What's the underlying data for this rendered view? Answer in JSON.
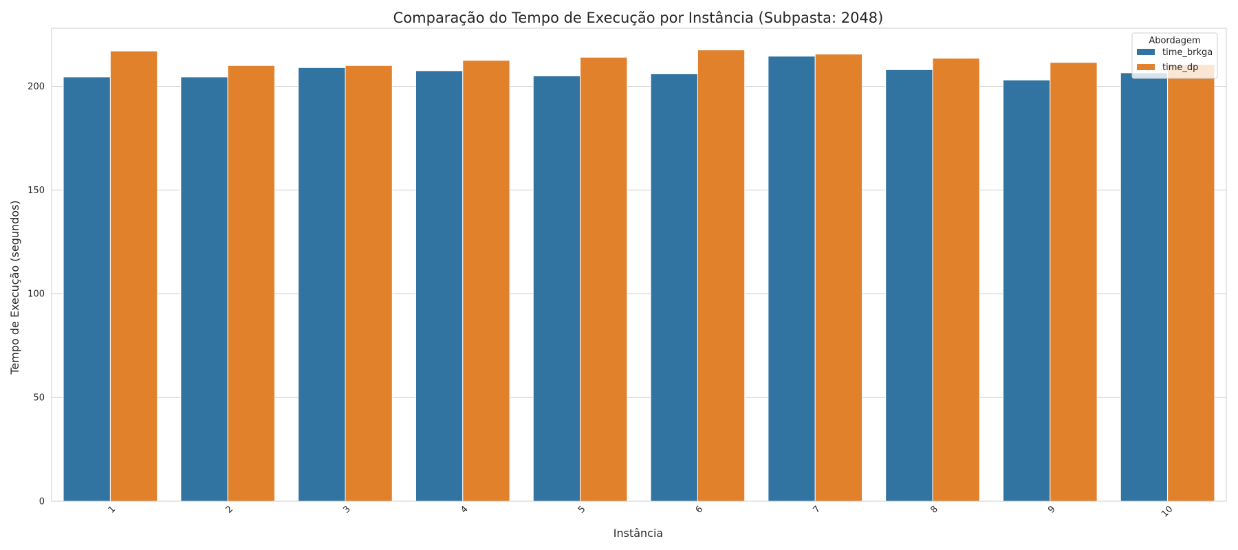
{
  "chart_data": {
    "type": "bar",
    "title": "Comparação do Tempo de Execução por Instância (Subpasta: 2048)",
    "xlabel": "Instância",
    "ylabel": "Tempo de Execução (segundos)",
    "categories": [
      "1",
      "2",
      "3",
      "4",
      "5",
      "6",
      "7",
      "8",
      "9",
      "10"
    ],
    "series": [
      {
        "name": "time_brkga",
        "color": "#3274a1",
        "values": [
          204.5,
          204.5,
          209.0,
          207.5,
          205.0,
          206.0,
          214.5,
          208.0,
          203.0,
          206.5
        ]
      },
      {
        "name": "time_dp",
        "color": "#e1812c",
        "values": [
          217.0,
          210.0,
          210.0,
          212.5,
          214.0,
          217.5,
          215.5,
          213.5,
          211.5,
          210.5
        ]
      }
    ],
    "ylim": [
      0,
      228
    ],
    "yticks": [
      0,
      50,
      100,
      150,
      200
    ],
    "grid": true,
    "legend": {
      "title": "Abordagem",
      "placement": "top-right"
    }
  }
}
